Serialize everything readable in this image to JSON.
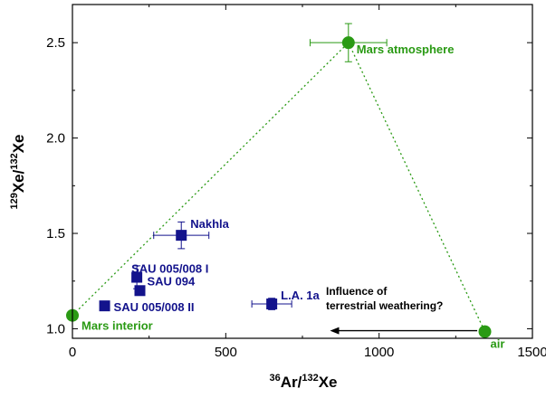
{
  "chart_data": {
    "type": "scatter",
    "xlabel": {
      "sup1": "36",
      "base1": "Ar/",
      "sup2": "132",
      "base2": "Xe"
    },
    "ylabel": {
      "sup1": "129",
      "base1": "Xe/",
      "sup2": "132",
      "base2": "Xe"
    },
    "xlim": [
      0,
      1500
    ],
    "ylim": [
      0.95,
      2.7
    ],
    "xticks": [
      0,
      500,
      1000,
      1500
    ],
    "xtick_labels": [
      "0",
      "500",
      "1000",
      "1500"
    ],
    "yticks": [
      1.0,
      1.5,
      2.0,
      2.5
    ],
    "ytick_labels": [
      "1.0",
      "1.5",
      "2.0",
      "2.5"
    ],
    "grid": false,
    "colors": {
      "reservoir": "#2a9a14",
      "meteorite": "#13138c"
    },
    "reservoirs": [
      {
        "label": "Mars interior",
        "x": 0,
        "y": 1.07,
        "xerr": 0,
        "yerr": 0
      },
      {
        "label": "Mars atmosphere",
        "x": 900,
        "y": 2.5,
        "xerr": 125,
        "yerr": 0.1
      },
      {
        "label": "air",
        "x": 1345,
        "y": 0.985,
        "xerr": 0,
        "yerr": 0
      }
    ],
    "meteorites": [
      {
        "label": "Nakhla",
        "x": 355,
        "y": 1.49,
        "xerr": 90,
        "yerr": 0.07
      },
      {
        "label": "SAU 005/008 I",
        "x": 210,
        "y": 1.27,
        "xerr": 0,
        "yerr": 0.06
      },
      {
        "label": "SAU 094",
        "x": 220,
        "y": 1.2,
        "xerr": 0,
        "yerr": 0
      },
      {
        "label": "SAU 005/008 II",
        "x": 105,
        "y": 1.12,
        "xerr": 0,
        "yerr": 0
      },
      {
        "label": "L.A. 1a",
        "x": 650,
        "y": 1.13,
        "xerr": 65,
        "yerr": 0.03
      }
    ],
    "mixing_lines": [
      {
        "from": "Mars interior",
        "to": "Mars atmosphere"
      },
      {
        "from": "Mars atmosphere",
        "to": "air"
      }
    ],
    "annotation": {
      "line1": "Influence of",
      "line2": "terrestrial weathering?",
      "arrow_from": {
        "x": 1320,
        "y": 0.99
      },
      "arrow_to": {
        "x": 840,
        "y": 0.99
      }
    }
  }
}
